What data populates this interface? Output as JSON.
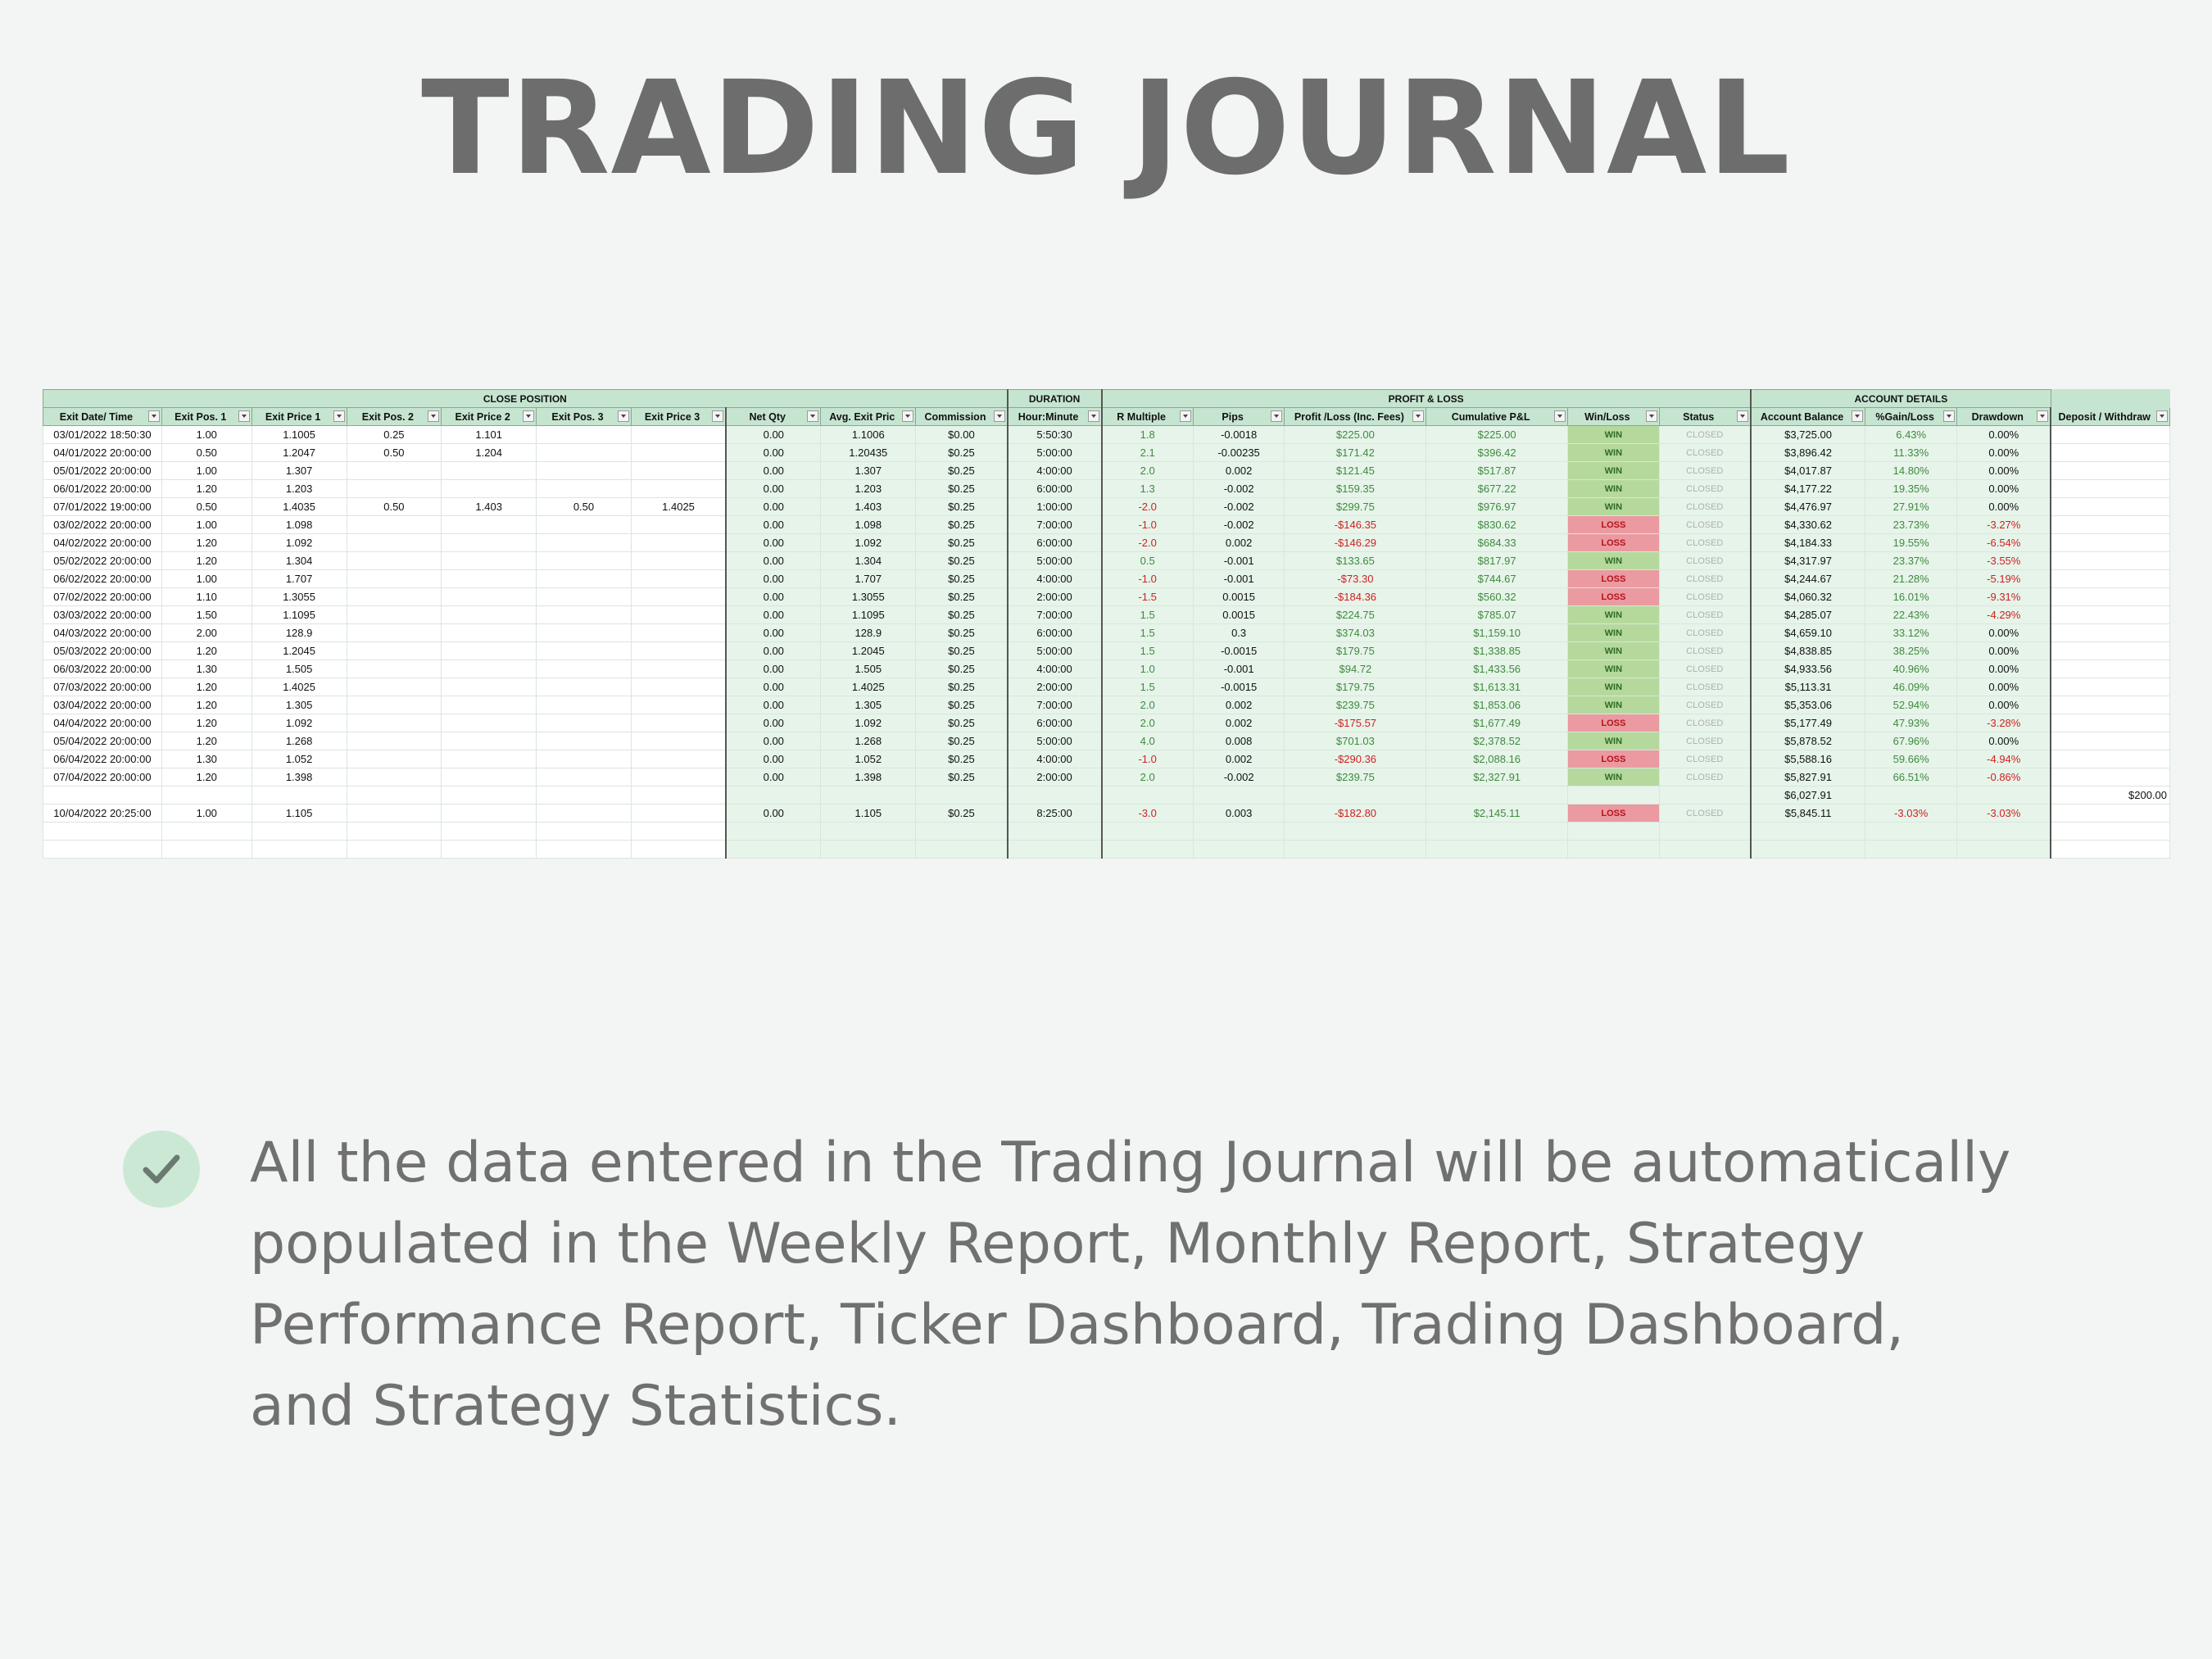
{
  "title": "TRADING JOURNAL",
  "description": "All the data entered in the Trading Journal will be automatically populated in the Weekly Report, Monthly Report, Strategy Performance Report, Ticker Dashboard, Trading Dashboard, and Strategy Statistics.",
  "table": {
    "groups": [
      "CLOSE POSITION",
      "DURATION",
      "PROFIT & LOSS",
      "ACCOUNT DETAILS"
    ],
    "columns": [
      "Exit Date/ Time",
      "Exit Pos. 1",
      "Exit Price 1",
      "Exit Pos. 2",
      "Exit Price 2",
      "Exit Pos. 3",
      "Exit Price 3",
      "Net Qty",
      "Avg. Exit Pric",
      "Commission",
      "Hour:Minute",
      "R Multiple",
      "Pips",
      "Profit /Loss (Inc. Fees)",
      "Cumulative P&L",
      "Win/Loss",
      "Status",
      "Account Balance",
      "%Gain/Loss",
      "Drawdown",
      "Deposit / Withdraw"
    ],
    "rows": [
      [
        "03/01/2022 18:50:30",
        "1.00",
        "1.1005",
        "0.25",
        "1.101",
        "",
        "",
        "0.00",
        "1.1006",
        "$0.00",
        "5:50:30",
        "1.8",
        "-0.0018",
        "$225.00",
        "$225.00",
        "WIN",
        "CLOSED",
        "$3,725.00",
        "6.43%",
        "0.00%",
        ""
      ],
      [
        "04/01/2022 20:00:00",
        "0.50",
        "1.2047",
        "0.50",
        "1.204",
        "",
        "",
        "0.00",
        "1.20435",
        "$0.25",
        "5:00:00",
        "2.1",
        "-0.00235",
        "$171.42",
        "$396.42",
        "WIN",
        "CLOSED",
        "$3,896.42",
        "11.33%",
        "0.00%",
        ""
      ],
      [
        "05/01/2022 20:00:00",
        "1.00",
        "1.307",
        "",
        "",
        "",
        "",
        "0.00",
        "1.307",
        "$0.25",
        "4:00:00",
        "2.0",
        "0.002",
        "$121.45",
        "$517.87",
        "WIN",
        "CLOSED",
        "$4,017.87",
        "14.80%",
        "0.00%",
        ""
      ],
      [
        "06/01/2022 20:00:00",
        "1.20",
        "1.203",
        "",
        "",
        "",
        "",
        "0.00",
        "1.203",
        "$0.25",
        "6:00:00",
        "1.3",
        "-0.002",
        "$159.35",
        "$677.22",
        "WIN",
        "CLOSED",
        "$4,177.22",
        "19.35%",
        "0.00%",
        ""
      ],
      [
        "07/01/2022 19:00:00",
        "0.50",
        "1.4035",
        "0.50",
        "1.403",
        "0.50",
        "1.4025",
        "0.00",
        "1.403",
        "$0.25",
        "1:00:00",
        "-2.0",
        "-0.002",
        "$299.75",
        "$976.97",
        "WIN",
        "CLOSED",
        "$4,476.97",
        "27.91%",
        "0.00%",
        ""
      ],
      [
        "03/02/2022 20:00:00",
        "1.00",
        "1.098",
        "",
        "",
        "",
        "",
        "0.00",
        "1.098",
        "$0.25",
        "7:00:00",
        "-1.0",
        "-0.002",
        "-$146.35",
        "$830.62",
        "LOSS",
        "CLOSED",
        "$4,330.62",
        "23.73%",
        "-3.27%",
        ""
      ],
      [
        "04/02/2022 20:00:00",
        "1.20",
        "1.092",
        "",
        "",
        "",
        "",
        "0.00",
        "1.092",
        "$0.25",
        "6:00:00",
        "-2.0",
        "0.002",
        "-$146.29",
        "$684.33",
        "LOSS",
        "CLOSED",
        "$4,184.33",
        "19.55%",
        "-6.54%",
        ""
      ],
      [
        "05/02/2022 20:00:00",
        "1.20",
        "1.304",
        "",
        "",
        "",
        "",
        "0.00",
        "1.304",
        "$0.25",
        "5:00:00",
        "0.5",
        "-0.001",
        "$133.65",
        "$817.97",
        "WIN",
        "CLOSED",
        "$4,317.97",
        "23.37%",
        "-3.55%",
        ""
      ],
      [
        "06/02/2022 20:00:00",
        "1.00",
        "1.707",
        "",
        "",
        "",
        "",
        "0.00",
        "1.707",
        "$0.25",
        "4:00:00",
        "-1.0",
        "-0.001",
        "-$73.30",
        "$744.67",
        "LOSS",
        "CLOSED",
        "$4,244.67",
        "21.28%",
        "-5.19%",
        ""
      ],
      [
        "07/02/2022 20:00:00",
        "1.10",
        "1.3055",
        "",
        "",
        "",
        "",
        "0.00",
        "1.3055",
        "$0.25",
        "2:00:00",
        "-1.5",
        "0.0015",
        "-$184.36",
        "$560.32",
        "LOSS",
        "CLOSED",
        "$4,060.32",
        "16.01%",
        "-9.31%",
        ""
      ],
      [
        "03/03/2022 20:00:00",
        "1.50",
        "1.1095",
        "",
        "",
        "",
        "",
        "0.00",
        "1.1095",
        "$0.25",
        "7:00:00",
        "1.5",
        "0.0015",
        "$224.75",
        "$785.07",
        "WIN",
        "CLOSED",
        "$4,285.07",
        "22.43%",
        "-4.29%",
        ""
      ],
      [
        "04/03/2022 20:00:00",
        "2.00",
        "128.9",
        "",
        "",
        "",
        "",
        "0.00",
        "128.9",
        "$0.25",
        "6:00:00",
        "1.5",
        "0.3",
        "$374.03",
        "$1,159.10",
        "WIN",
        "CLOSED",
        "$4,659.10",
        "33.12%",
        "0.00%",
        ""
      ],
      [
        "05/03/2022 20:00:00",
        "1.20",
        "1.2045",
        "",
        "",
        "",
        "",
        "0.00",
        "1.2045",
        "$0.25",
        "5:00:00",
        "1.5",
        "-0.0015",
        "$179.75",
        "$1,338.85",
        "WIN",
        "CLOSED",
        "$4,838.85",
        "38.25%",
        "0.00%",
        ""
      ],
      [
        "06/03/2022 20:00:00",
        "1.30",
        "1.505",
        "",
        "",
        "",
        "",
        "0.00",
        "1.505",
        "$0.25",
        "4:00:00",
        "1.0",
        "-0.001",
        "$94.72",
        "$1,433.56",
        "WIN",
        "CLOSED",
        "$4,933.56",
        "40.96%",
        "0.00%",
        ""
      ],
      [
        "07/03/2022 20:00:00",
        "1.20",
        "1.4025",
        "",
        "",
        "",
        "",
        "0.00",
        "1.4025",
        "$0.25",
        "2:00:00",
        "1.5",
        "-0.0015",
        "$179.75",
        "$1,613.31",
        "WIN",
        "CLOSED",
        "$5,113.31",
        "46.09%",
        "0.00%",
        ""
      ],
      [
        "03/04/2022 20:00:00",
        "1.20",
        "1.305",
        "",
        "",
        "",
        "",
        "0.00",
        "1.305",
        "$0.25",
        "7:00:00",
        "2.0",
        "0.002",
        "$239.75",
        "$1,853.06",
        "WIN",
        "CLOSED",
        "$5,353.06",
        "52.94%",
        "0.00%",
        ""
      ],
      [
        "04/04/2022 20:00:00",
        "1.20",
        "1.092",
        "",
        "",
        "",
        "",
        "0.00",
        "1.092",
        "$0.25",
        "6:00:00",
        "2.0",
        "0.002",
        "-$175.57",
        "$1,677.49",
        "LOSS",
        "CLOSED",
        "$5,177.49",
        "47.93%",
        "-3.28%",
        ""
      ],
      [
        "05/04/2022 20:00:00",
        "1.20",
        "1.268",
        "",
        "",
        "",
        "",
        "0.00",
        "1.268",
        "$0.25",
        "5:00:00",
        "4.0",
        "0.008",
        "$701.03",
        "$2,378.52",
        "WIN",
        "CLOSED",
        "$5,878.52",
        "67.96%",
        "0.00%",
        ""
      ],
      [
        "06/04/2022 20:00:00",
        "1.30",
        "1.052",
        "",
        "",
        "",
        "",
        "0.00",
        "1.052",
        "$0.25",
        "4:00:00",
        "-1.0",
        "0.002",
        "-$290.36",
        "$2,088.16",
        "LOSS",
        "CLOSED",
        "$5,588.16",
        "59.66%",
        "-4.94%",
        ""
      ],
      [
        "07/04/2022 20:00:00",
        "1.20",
        "1.398",
        "",
        "",
        "",
        "",
        "0.00",
        "1.398",
        "$0.25",
        "2:00:00",
        "2.0",
        "-0.002",
        "$239.75",
        "$2,327.91",
        "WIN",
        "CLOSED",
        "$5,827.91",
        "66.51%",
        "-0.86%",
        ""
      ],
      [
        "",
        "",
        "",
        "",
        "",
        "",
        "",
        "",
        "",
        "",
        "",
        "",
        "",
        "",
        "",
        "",
        "",
        "$6,027.91",
        "",
        "",
        "$200.00"
      ],
      [
        "10/04/2022 20:25:00",
        "1.00",
        "1.105",
        "",
        "",
        "",
        "",
        "0.00",
        "1.105",
        "$0.25",
        "8:25:00",
        "-3.0",
        "0.003",
        "-$182.80",
        "$2,145.11",
        "LOSS",
        "CLOSED",
        "$5,845.11",
        "-3.03%",
        "-3.03%",
        ""
      ],
      [
        "",
        "",
        "",
        "",
        "",
        "",
        "",
        "",
        "",
        "",
        "",
        "",
        "",
        "",
        "",
        "",
        "",
        "",
        "",
        "",
        ""
      ],
      [
        "",
        "",
        "",
        "",
        "",
        "",
        "",
        "",
        "",
        "",
        "",
        "",
        "",
        "",
        "",
        "",
        "",
        "",
        "",
        "",
        ""
      ]
    ]
  },
  "icons": {
    "bullet": "check-icon",
    "filter": "filter-dropdown-icon"
  },
  "colors": {
    "header": "#c6e5d0",
    "win": "#b5d99c",
    "loss": "#ea9aa0",
    "positive": "#3f8a3c",
    "negative": "#d11f1f"
  }
}
